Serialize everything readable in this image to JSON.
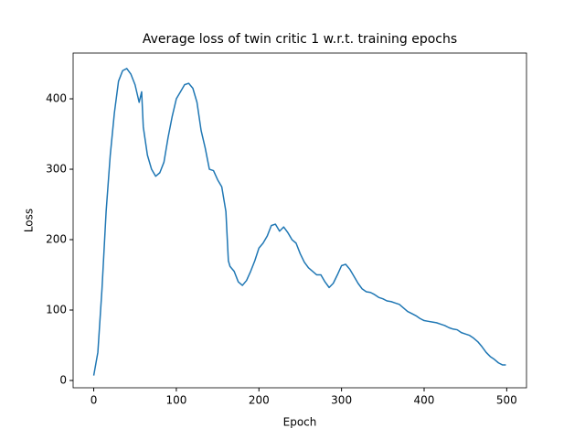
{
  "chart_data": {
    "type": "line",
    "title": "Average loss of twin critic 1 w.r.t. training epochs",
    "x_label": "Epoch",
    "y_label": "Loss",
    "x": [
      0,
      5,
      10,
      15,
      20,
      25,
      30,
      35,
      40,
      45,
      50,
      55,
      58,
      60,
      65,
      70,
      75,
      80,
      85,
      90,
      95,
      100,
      105,
      110,
      115,
      120,
      125,
      130,
      135,
      140,
      145,
      150,
      155,
      160,
      163,
      165,
      170,
      175,
      180,
      185,
      190,
      195,
      200,
      205,
      210,
      215,
      220,
      225,
      230,
      235,
      240,
      245,
      250,
      255,
      260,
      265,
      270,
      275,
      280,
      285,
      290,
      295,
      300,
      305,
      310,
      315,
      320,
      325,
      330,
      335,
      340,
      345,
      350,
      355,
      360,
      365,
      370,
      375,
      380,
      385,
      390,
      395,
      400,
      405,
      410,
      415,
      420,
      425,
      430,
      435,
      440,
      445,
      450,
      455,
      460,
      465,
      470,
      475,
      480,
      485,
      490,
      495,
      499
    ],
    "series": [
      {
        "name": "Loss",
        "color": "#1f77b4",
        "values": [
          7,
          40,
          130,
          240,
          320,
          380,
          425,
          440,
          443,
          435,
          420,
          395,
          410,
          360,
          320,
          300,
          290,
          295,
          310,
          345,
          375,
          400,
          410,
          420,
          422,
          415,
          395,
          355,
          330,
          300,
          298,
          285,
          275,
          240,
          170,
          162,
          155,
          140,
          135,
          142,
          155,
          170,
          188,
          195,
          205,
          220,
          222,
          212,
          218,
          210,
          200,
          195,
          180,
          168,
          160,
          155,
          150,
          150,
          140,
          132,
          138,
          150,
          163,
          165,
          158,
          148,
          138,
          130,
          126,
          125,
          122,
          118,
          116,
          113,
          112,
          110,
          108,
          103,
          98,
          95,
          92,
          88,
          85,
          84,
          83,
          82,
          80,
          78,
          75,
          73,
          72,
          68,
          66,
          64,
          60,
          55,
          48,
          40,
          34,
          30,
          25,
          22,
          22
        ]
      }
    ],
    "xlim": [
      -24.95,
      523.95
    ],
    "ylim": [
      -10.4,
      465
    ],
    "xticks": [
      0,
      100,
      200,
      300,
      400,
      500
    ],
    "yticks": [
      0,
      100,
      200,
      300,
      400
    ]
  }
}
